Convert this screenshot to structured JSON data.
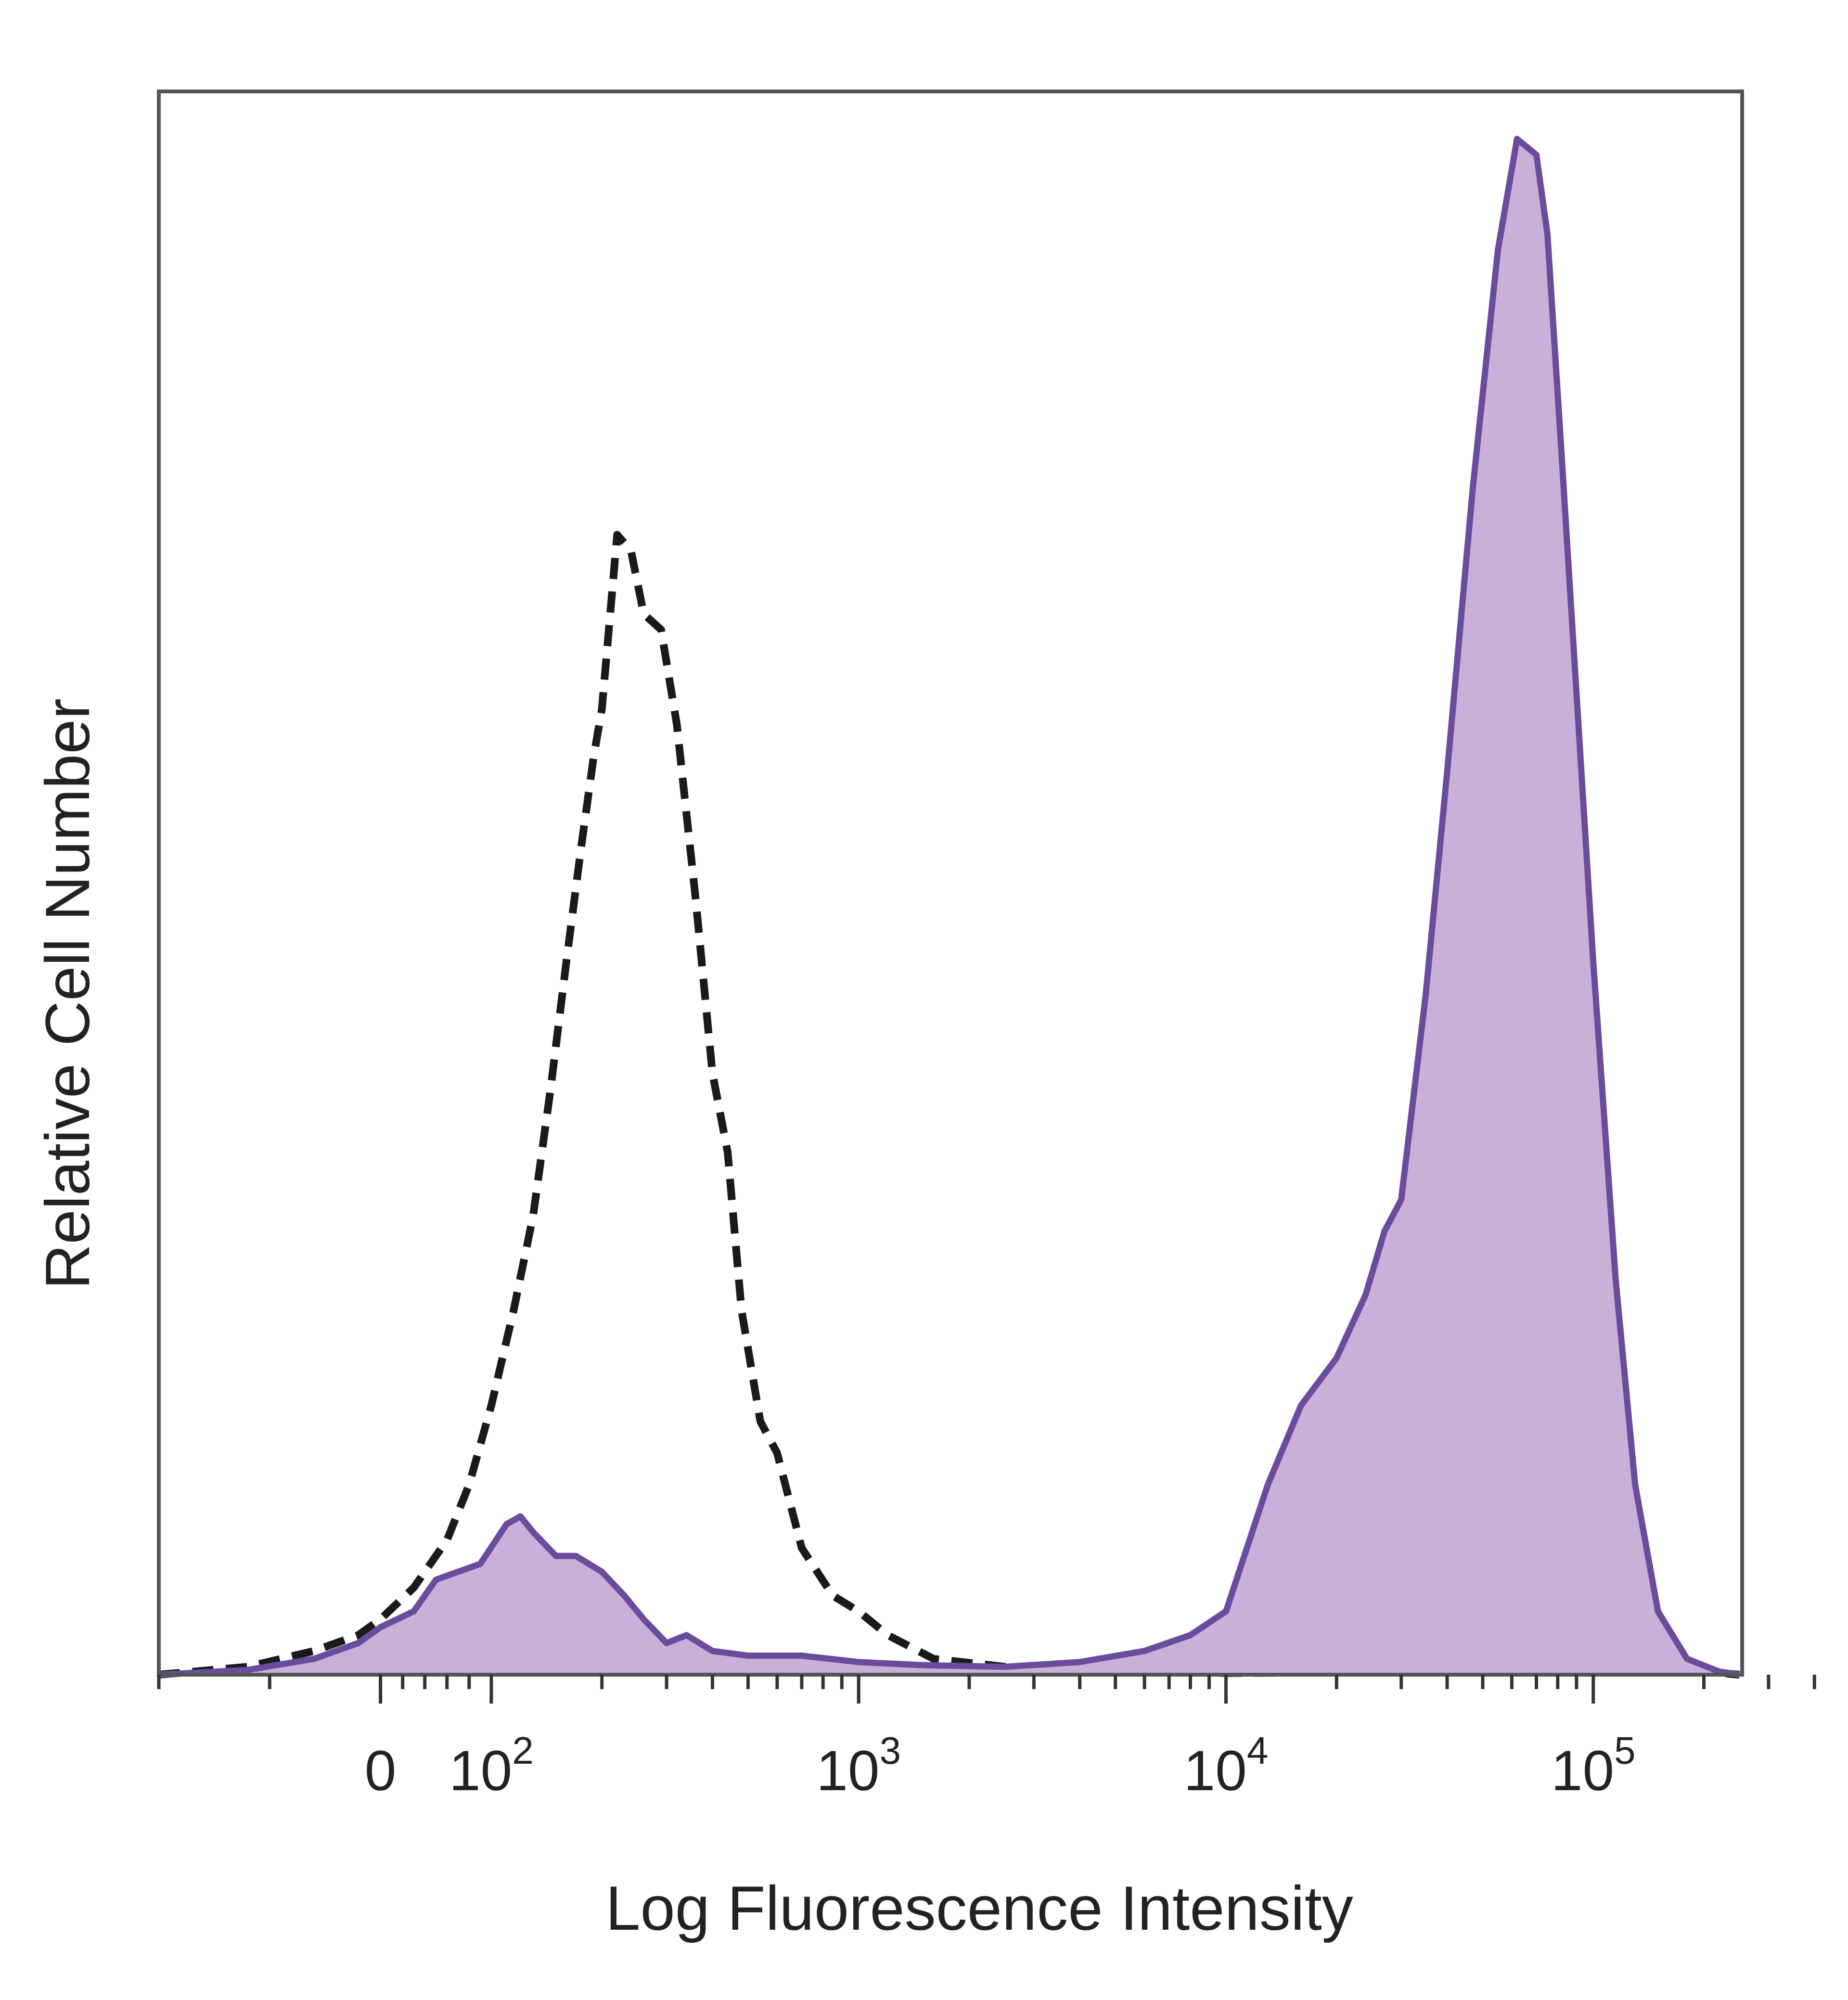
{
  "chart_data": {
    "type": "area",
    "title": "",
    "xlabel": "Log Fluorescence Intensity",
    "ylabel": "Relative Cell Number",
    "x_scale": "biexponential",
    "xlim": [
      -200,
      250000
    ],
    "ylim": [
      0,
      100
    ],
    "x_ticks": [
      {
        "value": 0,
        "base": "0",
        "exp": ""
      },
      {
        "value": 100,
        "base": "10",
        "exp": "2"
      },
      {
        "value": 1000,
        "base": "10",
        "exp": "3"
      },
      {
        "value": 10000,
        "base": "10",
        "exp": "4"
      },
      {
        "value": 100000,
        "base": "10",
        "exp": "5"
      }
    ],
    "grid": false,
    "legend": "none",
    "series": [
      {
        "style": "dashed",
        "color": "#1a1a1a",
        "fill": "none",
        "points": [
          [
            -200,
            0
          ],
          [
            -120,
            0.5
          ],
          [
            -60,
            1.5
          ],
          [
            -20,
            2.5
          ],
          [
            0,
            3.5
          ],
          [
            30,
            5.5
          ],
          [
            60,
            8.5
          ],
          [
            80,
            12
          ],
          [
            100,
            17
          ],
          [
            115,
            23
          ],
          [
            130,
            29
          ],
          [
            145,
            37
          ],
          [
            160,
            45
          ],
          [
            175,
            52
          ],
          [
            190,
            58
          ],
          [
            200,
            61
          ],
          [
            220,
            72
          ],
          [
            240,
            71
          ],
          [
            260,
            67
          ],
          [
            290,
            66
          ],
          [
            320,
            60
          ],
          [
            360,
            49
          ],
          [
            400,
            38
          ],
          [
            440,
            33
          ],
          [
            480,
            23
          ],
          [
            540,
            16
          ],
          [
            600,
            14
          ],
          [
            700,
            8
          ],
          [
            850,
            5
          ],
          [
            1000,
            4
          ],
          [
            1200,
            2.5
          ],
          [
            1600,
            1
          ],
          [
            2500,
            0.5
          ],
          [
            5000,
            0.2
          ],
          [
            10000,
            0.1
          ],
          [
            50000,
            0.2
          ],
          [
            100000,
            0.3
          ],
          [
            200000,
            0.2
          ],
          [
            250000,
            0
          ]
        ]
      },
      {
        "style": "solid",
        "color": "#6a4b9c",
        "fill": "#c9b0d8",
        "points": [
          [
            -200,
            0
          ],
          [
            -120,
            0.3
          ],
          [
            -60,
            1
          ],
          [
            -20,
            2
          ],
          [
            0,
            3
          ],
          [
            30,
            4
          ],
          [
            50,
            6
          ],
          [
            70,
            6.5
          ],
          [
            90,
            7
          ],
          [
            110,
            9.5
          ],
          [
            120,
            10
          ],
          [
            130,
            9
          ],
          [
            150,
            7.5
          ],
          [
            170,
            7.5
          ],
          [
            200,
            6.5
          ],
          [
            230,
            5
          ],
          [
            260,
            3.5
          ],
          [
            300,
            2
          ],
          [
            340,
            2.5
          ],
          [
            400,
            1.5
          ],
          [
            500,
            1.2
          ],
          [
            700,
            1.2
          ],
          [
            1000,
            0.8
          ],
          [
            1500,
            0.6
          ],
          [
            2500,
            0.5
          ],
          [
            4000,
            0.8
          ],
          [
            6000,
            1.5
          ],
          [
            8000,
            2.5
          ],
          [
            10000,
            4
          ],
          [
            13000,
            12
          ],
          [
            16000,
            17
          ],
          [
            20000,
            20
          ],
          [
            24000,
            24
          ],
          [
            27000,
            28
          ],
          [
            30000,
            30
          ],
          [
            35000,
            43
          ],
          [
            40000,
            57
          ],
          [
            47000,
            75
          ],
          [
            55000,
            90
          ],
          [
            62000,
            97
          ],
          [
            70000,
            96
          ],
          [
            75000,
            91
          ],
          [
            82000,
            77
          ],
          [
            90000,
            62
          ],
          [
            100000,
            45
          ],
          [
            115000,
            25
          ],
          [
            130000,
            12
          ],
          [
            150000,
            4
          ],
          [
            180000,
            1
          ],
          [
            220000,
            0.2
          ],
          [
            250000,
            0
          ]
        ]
      }
    ]
  }
}
